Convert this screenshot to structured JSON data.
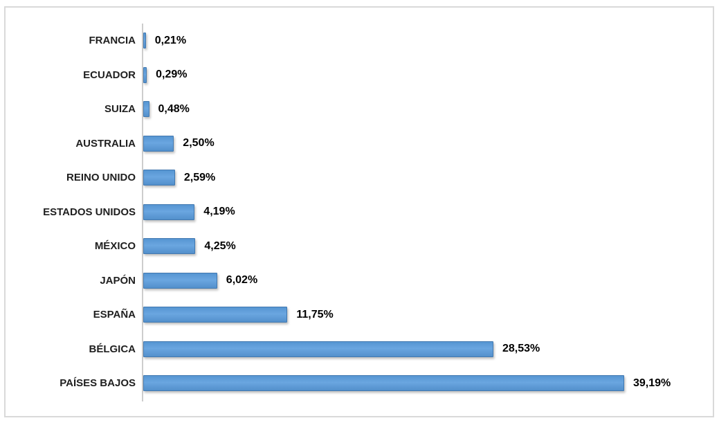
{
  "chart_data": {
    "type": "bar",
    "orientation": "horizontal",
    "title": "",
    "xlabel": "",
    "ylabel": "",
    "grid": false,
    "legend": false,
    "xlim": [
      0,
      40
    ],
    "categories": [
      "FRANCIA",
      "ECUADOR",
      "SUIZA",
      "AUSTRALIA",
      "REINO UNIDO",
      "ESTADOS UNIDOS",
      "MÉXICO",
      "JAPÓN",
      "ESPAÑA",
      "BÉLGICA",
      "PAÍSES BAJOS"
    ],
    "values": [
      0.21,
      0.29,
      0.48,
      2.5,
      2.59,
      4.19,
      4.25,
      6.02,
      11.75,
      28.53,
      39.19
    ],
    "value_labels": [
      "0,21%",
      "0,29%",
      "0,48%",
      "2,50%",
      "2,59%",
      "4,19%",
      "4,25%",
      "6,02%",
      "11,75%",
      "28,53%",
      "39,19%"
    ],
    "colors": {
      "bar_fill": "#5b9bd5",
      "bar_fill_gradient": [
        "#5695d2",
        "#6aa6e0",
        "#5390cc"
      ],
      "bar_border": "#4279b0",
      "category_label": "#1f1f1f",
      "value_label": "#000000",
      "axis_line": "#cdcdcd",
      "frame_border": "#d9d9d9",
      "background": "#ffffff"
    }
  }
}
